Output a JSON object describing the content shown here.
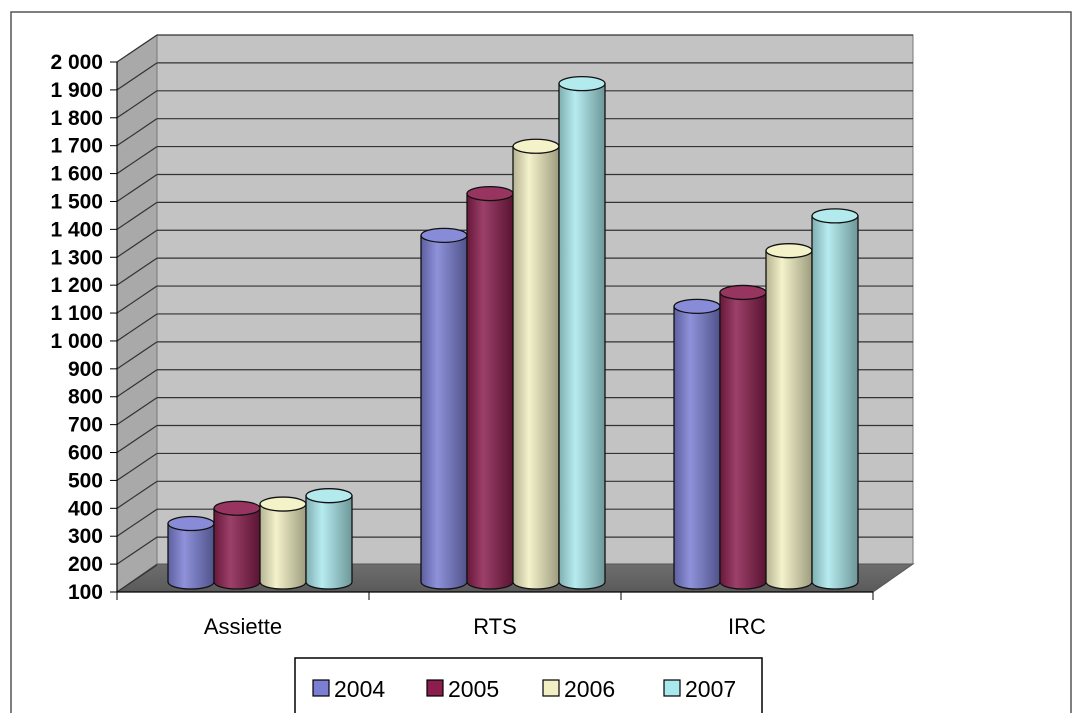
{
  "chart_data": {
    "type": "bar",
    "categories": [
      "Assiette",
      "RTS",
      "IRC"
    ],
    "series": [
      {
        "name": "2004",
        "color": "#7b7fd4",
        "values": [
          310,
          1345,
          1090
        ]
      },
      {
        "name": "2005",
        "color": "#8b1e4e",
        "values": [
          365,
          1495,
          1140
        ]
      },
      {
        "name": "2006",
        "color": "#f2f0c2",
        "values": [
          380,
          1665,
          1290
        ]
      },
      {
        "name": "2007",
        "color": "#a9e8ec",
        "values": [
          410,
          1890,
          1415
        ]
      }
    ],
    "ylim": [
      100,
      2000
    ],
    "yticks": [
      "2 000",
      "1 900",
      "1 800",
      "1 700",
      "1 600",
      "1 500",
      "1 400",
      "1 300",
      "1 200",
      "1 100",
      "1 000",
      "900",
      "800",
      "700",
      "600",
      "500",
      "400",
      "300",
      "200",
      "100"
    ],
    "grid": true,
    "legend_position": "bottom",
    "style": "3d-cylinder"
  }
}
